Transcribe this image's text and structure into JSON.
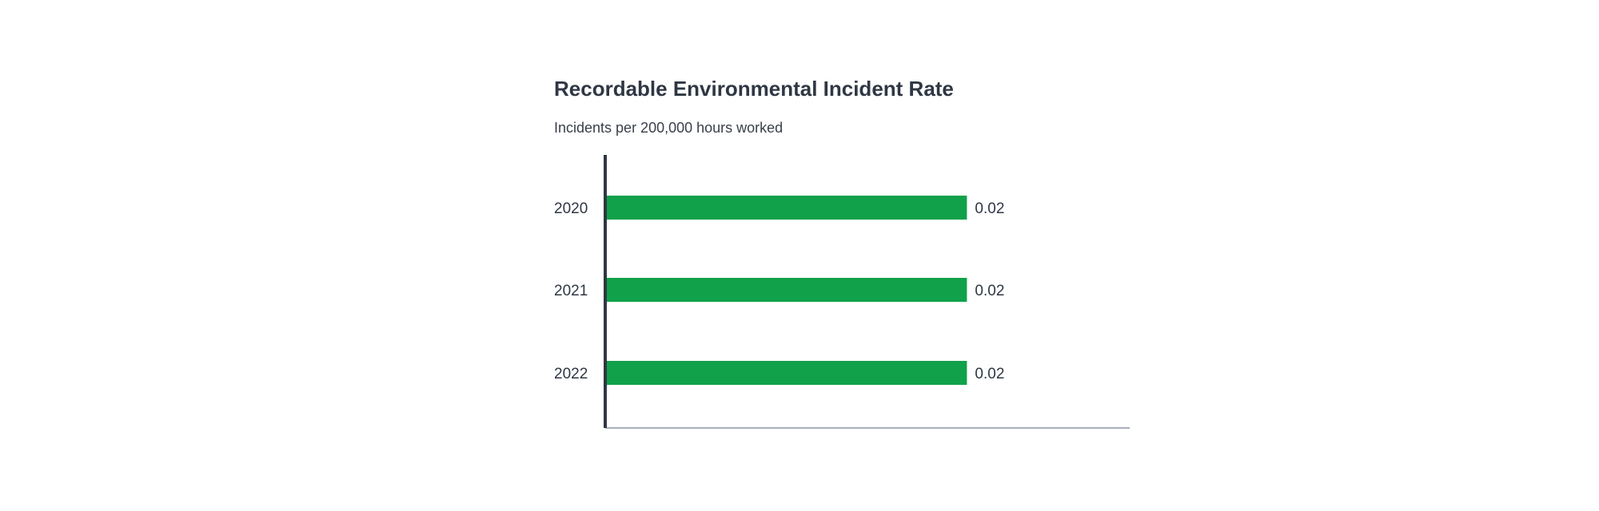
{
  "chart_data": {
    "type": "bar",
    "orientation": "horizontal",
    "title": "Recordable Environmental Incident Rate",
    "subtitle": "Incidents per 200,000 hours worked",
    "categories": [
      "2020",
      "2021",
      "2022"
    ],
    "values": [
      0.02,
      0.02,
      0.02
    ],
    "value_labels": [
      "0.02",
      "0.02",
      "0.02"
    ],
    "xlim": [
      0,
      0.029
    ],
    "grid": false,
    "legend": "none",
    "colors": {
      "bar": "#10a14a",
      "axis": "#2f3744",
      "baseline": "#a9b0ba"
    }
  }
}
